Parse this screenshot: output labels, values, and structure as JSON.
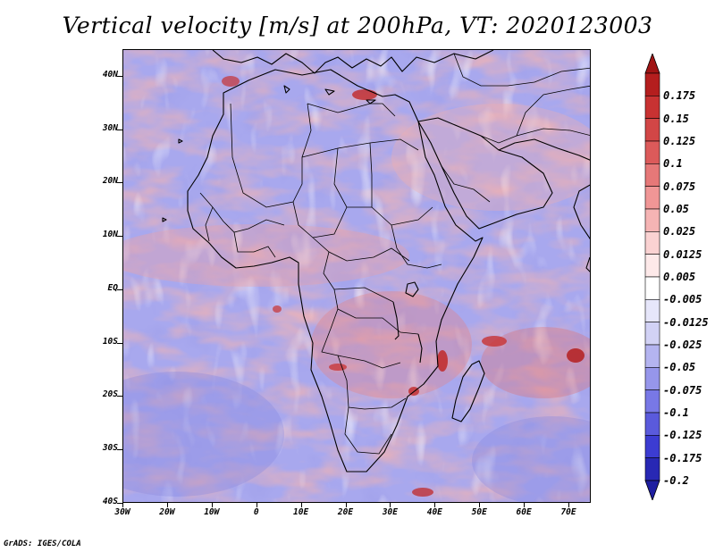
{
  "title": "Vertical velocity [m/s] at 200hPa, VT: 2020123003",
  "credit": "GrADS: IGES/COLA",
  "map": {
    "lat_range": [
      -40,
      45
    ],
    "lon_range": [
      -30,
      75
    ],
    "lat_ticks": [
      {
        "value": 40,
        "label": "40N"
      },
      {
        "value": 30,
        "label": "30N"
      },
      {
        "value": 20,
        "label": "20N"
      },
      {
        "value": 10,
        "label": "10N"
      },
      {
        "value": 0,
        "label": "EQ"
      },
      {
        "value": -10,
        "label": "10S"
      },
      {
        "value": -20,
        "label": "20S"
      },
      {
        "value": -30,
        "label": "30S"
      },
      {
        "value": -40,
        "label": "40S"
      }
    ],
    "lon_ticks": [
      {
        "value": -30,
        "label": "30W"
      },
      {
        "value": -20,
        "label": "20W"
      },
      {
        "value": -10,
        "label": "10W"
      },
      {
        "value": 0,
        "label": "0"
      },
      {
        "value": 10,
        "label": "10E"
      },
      {
        "value": 20,
        "label": "20E"
      },
      {
        "value": 30,
        "label": "30E"
      },
      {
        "value": 40,
        "label": "40E"
      },
      {
        "value": 50,
        "label": "50E"
      },
      {
        "value": 60,
        "label": "60E"
      },
      {
        "value": 70,
        "label": "70E"
      }
    ]
  },
  "colorbar": {
    "levels": [
      {
        "label": "0.175",
        "color": "#b41e1e"
      },
      {
        "label": "0.15",
        "color": "#c83232"
      },
      {
        "label": "0.125",
        "color": "#d24646"
      },
      {
        "label": "0.1",
        "color": "#dc5a5a"
      },
      {
        "label": "0.075",
        "color": "#e67878"
      },
      {
        "label": "0.05",
        "color": "#f09696"
      },
      {
        "label": "0.025",
        "color": "#f5b4b4"
      },
      {
        "label": "0.0125",
        "color": "#fad2d2"
      },
      {
        "label": "0.005",
        "color": "#fde9e9"
      },
      {
        "label": "-0.005",
        "color": "#ffffff"
      },
      {
        "label": "-0.0125",
        "color": "#e6e6fa"
      },
      {
        "label": "-0.025",
        "color": "#d2d2f5"
      },
      {
        "label": "-0.05",
        "color": "#b4b4f0"
      },
      {
        "label": "-0.075",
        "color": "#9696eb"
      },
      {
        "label": "-0.1",
        "color": "#7878e6"
      },
      {
        "label": "-0.125",
        "color": "#5a5adc"
      },
      {
        "label": "-0.175",
        "color": "#3c3cd2"
      },
      {
        "label": "-0.2",
        "color": "#2828b4"
      }
    ],
    "top_cap_color": "#a01414",
    "bottom_cap_color": "#1e1ea0"
  }
}
